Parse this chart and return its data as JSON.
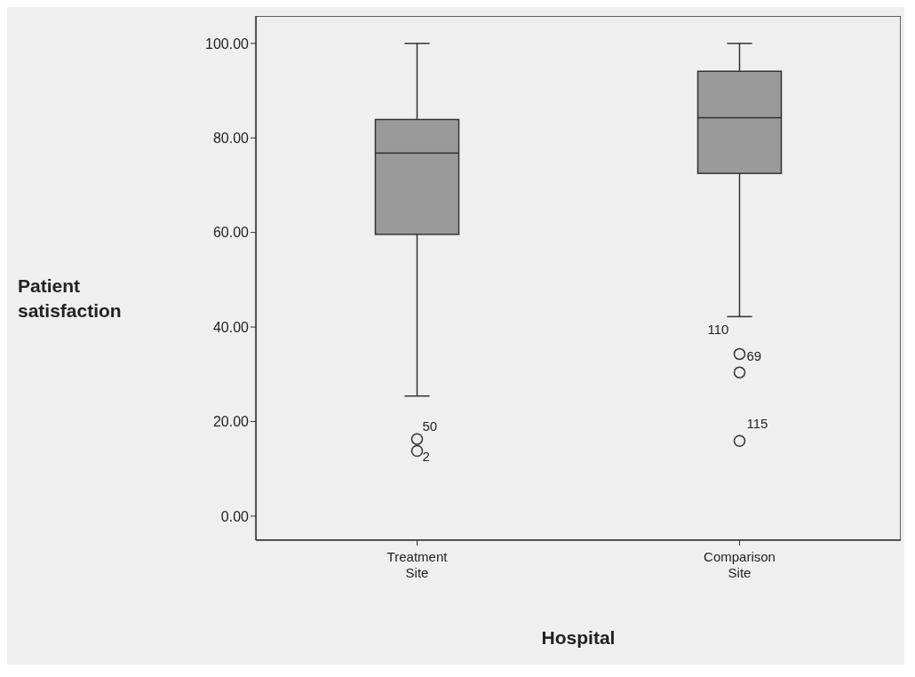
{
  "chart_data": {
    "type": "box",
    "xlabel": "Hospital",
    "ylabel": "Patient satisfaction",
    "categories": [
      "Treatment Site",
      "Comparison Site"
    ],
    "color": "#9a9a9a",
    "boxes": [
      {
        "low": 25.4,
        "q1": 59.6,
        "median": 76.8,
        "q3": 83.9,
        "high": 100,
        "outliers": [
          16.3,
          13.8
        ]
      },
      {
        "low": 42.2,
        "q1": 72.5,
        "median": 84.3,
        "q3": 94.1,
        "high": 100,
        "outliers": [
          34.3,
          30.4,
          15.9
        ]
      }
    ],
    "ylim": [
      -5.1,
      105.8
    ],
    "yticks": [
      {
        "value": 0,
        "label": "0.00"
      },
      {
        "value": 20,
        "label": "20.00"
      },
      {
        "value": 40,
        "label": "40.00"
      },
      {
        "value": 60,
        "label": "60.00"
      },
      {
        "value": 80,
        "label": "80.00"
      },
      {
        "value": 100,
        "label": "100.00"
      }
    ],
    "annotations": [
      "50",
      "2",
      "110",
      "69",
      "115"
    ],
    "grid": false,
    "legend": false
  }
}
